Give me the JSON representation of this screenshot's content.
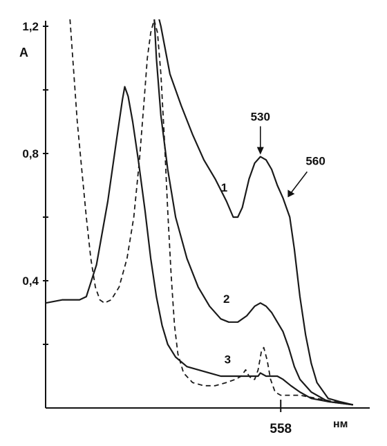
{
  "chart_data": {
    "type": "line",
    "title": "",
    "xlabel": "нм",
    "ylabel": "A",
    "ylim": [
      0,
      1.2
    ],
    "yticks": [
      {
        "value": 0.2,
        "label": ""
      },
      {
        "value": 0.4,
        "label": "0,4"
      },
      {
        "value": 0.6,
        "label": ""
      },
      {
        "value": 0.8,
        "label": "0,8"
      },
      {
        "value": 1.0,
        "label": ""
      },
      {
        "value": 1.2,
        "label": "1,2"
      }
    ],
    "xticks": [
      {
        "value": 558,
        "label": "558"
      }
    ],
    "xlim": [
      350,
      630
    ],
    "grid": false,
    "series": [
      {
        "name": "1",
        "style": "solid",
        "points": [
          [
            445,
            1.3
          ],
          [
            452,
            1.2
          ],
          [
            460,
            1.05
          ],
          [
            470,
            0.95
          ],
          [
            480,
            0.86
          ],
          [
            490,
            0.78
          ],
          [
            500,
            0.72
          ],
          [
            510,
            0.65
          ],
          [
            516,
            0.6
          ],
          [
            520,
            0.6
          ],
          [
            524,
            0.63
          ],
          [
            530,
            0.72
          ],
          [
            535,
            0.77
          ],
          [
            540,
            0.79
          ],
          [
            545,
            0.78
          ],
          [
            550,
            0.75
          ],
          [
            555,
            0.7
          ],
          [
            560,
            0.66
          ],
          [
            563,
            0.63
          ],
          [
            566,
            0.6
          ],
          [
            570,
            0.5
          ],
          [
            575,
            0.35
          ],
          [
            580,
            0.23
          ],
          [
            585,
            0.14
          ],
          [
            590,
            0.08
          ],
          [
            600,
            0.03
          ],
          [
            610,
            0.02
          ],
          [
            622,
            0.01
          ]
        ]
      },
      {
        "name": "2",
        "style": "solid",
        "points": [
          [
            445,
            1.3
          ],
          [
            448,
            1.1
          ],
          [
            452,
            0.92
          ],
          [
            458,
            0.75
          ],
          [
            465,
            0.6
          ],
          [
            475,
            0.47
          ],
          [
            485,
            0.38
          ],
          [
            495,
            0.32
          ],
          [
            505,
            0.28
          ],
          [
            512,
            0.27
          ],
          [
            520,
            0.27
          ],
          [
            528,
            0.29
          ],
          [
            535,
            0.32
          ],
          [
            540,
            0.33
          ],
          [
            545,
            0.32
          ],
          [
            550,
            0.3
          ],
          [
            555,
            0.27
          ],
          [
            560,
            0.24
          ],
          [
            565,
            0.19
          ],
          [
            570,
            0.13
          ],
          [
            575,
            0.09
          ],
          [
            585,
            0.05
          ],
          [
            600,
            0.02
          ],
          [
            622,
            0.01
          ]
        ]
      },
      {
        "name": "3",
        "style": "solid",
        "points": [
          [
            350,
            0.33
          ],
          [
            365,
            0.34
          ],
          [
            380,
            0.34
          ],
          [
            386,
            0.35
          ],
          [
            395,
            0.45
          ],
          [
            405,
            0.65
          ],
          [
            413,
            0.85
          ],
          [
            418,
            0.97
          ],
          [
            420,
            1.01
          ],
          [
            423,
            0.98
          ],
          [
            427,
            0.9
          ],
          [
            432,
            0.78
          ],
          [
            438,
            0.62
          ],
          [
            443,
            0.47
          ],
          [
            448,
            0.35
          ],
          [
            453,
            0.26
          ],
          [
            458,
            0.2
          ],
          [
            465,
            0.16
          ],
          [
            475,
            0.13
          ],
          [
            485,
            0.12
          ],
          [
            495,
            0.11
          ],
          [
            505,
            0.1
          ],
          [
            515,
            0.1
          ],
          [
            525,
            0.1
          ],
          [
            530,
            0.1
          ],
          [
            535,
            0.1
          ],
          [
            538,
            0.1
          ],
          [
            540,
            0.11
          ],
          [
            545,
            0.1
          ],
          [
            550,
            0.1
          ],
          [
            555,
            0.1
          ],
          [
            560,
            0.09
          ],
          [
            567,
            0.07
          ],
          [
            575,
            0.05
          ],
          [
            585,
            0.03
          ],
          [
            600,
            0.02
          ],
          [
            622,
            0.01
          ]
        ]
      },
      {
        "name": "",
        "style": "dashed",
        "points": [
          [
            370,
            1.3
          ],
          [
            372,
            1.2
          ],
          [
            375,
            1.05
          ],
          [
            378,
            0.9
          ],
          [
            382,
            0.75
          ],
          [
            386,
            0.6
          ],
          [
            390,
            0.47
          ],
          [
            394,
            0.38
          ],
          [
            398,
            0.34
          ],
          [
            402,
            0.33
          ],
          [
            408,
            0.34
          ],
          [
            415,
            0.38
          ],
          [
            422,
            0.47
          ],
          [
            428,
            0.6
          ],
          [
            433,
            0.78
          ],
          [
            437,
            0.96
          ],
          [
            440,
            1.1
          ],
          [
            443,
            1.18
          ],
          [
            446,
            1.22
          ],
          [
            449,
            1.18
          ],
          [
            452,
            1.05
          ],
          [
            455,
            0.85
          ],
          [
            458,
            0.62
          ],
          [
            461,
            0.42
          ],
          [
            464,
            0.26
          ],
          [
            467,
            0.17
          ],
          [
            472,
            0.11
          ],
          [
            480,
            0.08
          ],
          [
            490,
            0.07
          ],
          [
            500,
            0.07
          ],
          [
            510,
            0.08
          ],
          [
            518,
            0.09
          ],
          [
            523,
            0.1
          ],
          [
            527,
            0.12
          ],
          [
            530,
            0.1
          ],
          [
            533,
            0.09
          ],
          [
            535,
            0.09
          ],
          [
            538,
            0.12
          ],
          [
            541,
            0.18
          ],
          [
            543,
            0.19
          ],
          [
            546,
            0.15
          ],
          [
            549,
            0.09
          ],
          [
            553,
            0.05
          ],
          [
            558,
            0.04
          ],
          [
            565,
            0.04
          ],
          [
            575,
            0.04
          ],
          [
            590,
            0.03
          ],
          [
            605,
            0.02
          ],
          [
            622,
            0.01
          ]
        ]
      }
    ],
    "annotations": [
      {
        "text": "530",
        "x": 540,
        "y": 0.79,
        "arrow": true
      },
      {
        "text": "560",
        "x": 563,
        "y": 0.66,
        "arrow": true
      }
    ]
  }
}
